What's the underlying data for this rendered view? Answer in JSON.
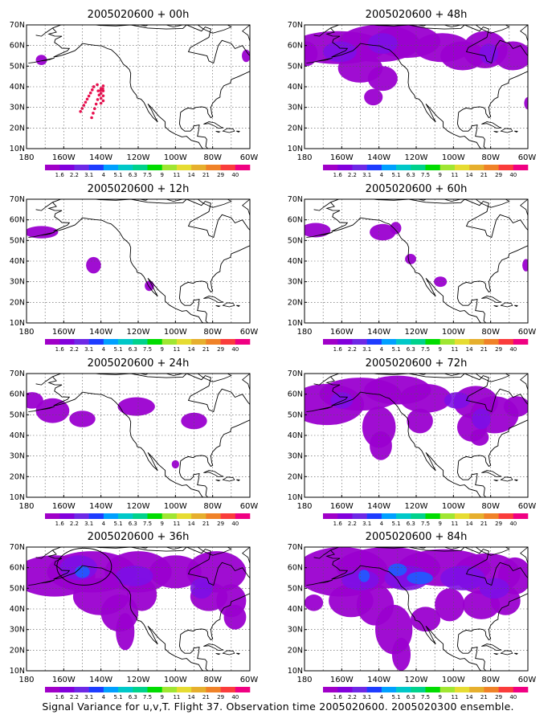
{
  "caption": "Signal Variance for u,v,T. Flight 37. Observation time 2005020600. 2005020300 ensemble.",
  "axes": {
    "lat_labels": [
      "10N",
      "20N",
      "30N",
      "40N",
      "50N",
      "60N",
      "70N"
    ],
    "lon_labels": [
      "180",
      "160W",
      "140W",
      "120W",
      "100W",
      "80W",
      "60W"
    ]
  },
  "colorbar": {
    "labels": [
      "1.6",
      "2.2",
      "3.1",
      "4",
      "5.1",
      "6.3",
      "7.5",
      "9",
      "11",
      "14",
      "21",
      "29",
      "40"
    ],
    "colors": [
      "#a000c8",
      "#8200dc",
      "#6e28e6",
      "#1e3cff",
      "#00a0ff",
      "#00c8c8",
      "#00d28c",
      "#00dc00",
      "#a0e632",
      "#e6dc32",
      "#e6af2d",
      "#f08228",
      "#fa3c3c",
      "#f00082"
    ]
  },
  "panels": [
    {
      "title": "2005020600 + 00h"
    },
    {
      "title": "2005020600 + 48h"
    },
    {
      "title": "2005020600 + 12h"
    },
    {
      "title": "2005020600 + 60h"
    },
    {
      "title": "2005020600 + 24h"
    },
    {
      "title": "2005020600 + 72h"
    },
    {
      "title": "2005020600 + 36h"
    },
    {
      "title": "2005020600 + 84h"
    }
  ]
}
